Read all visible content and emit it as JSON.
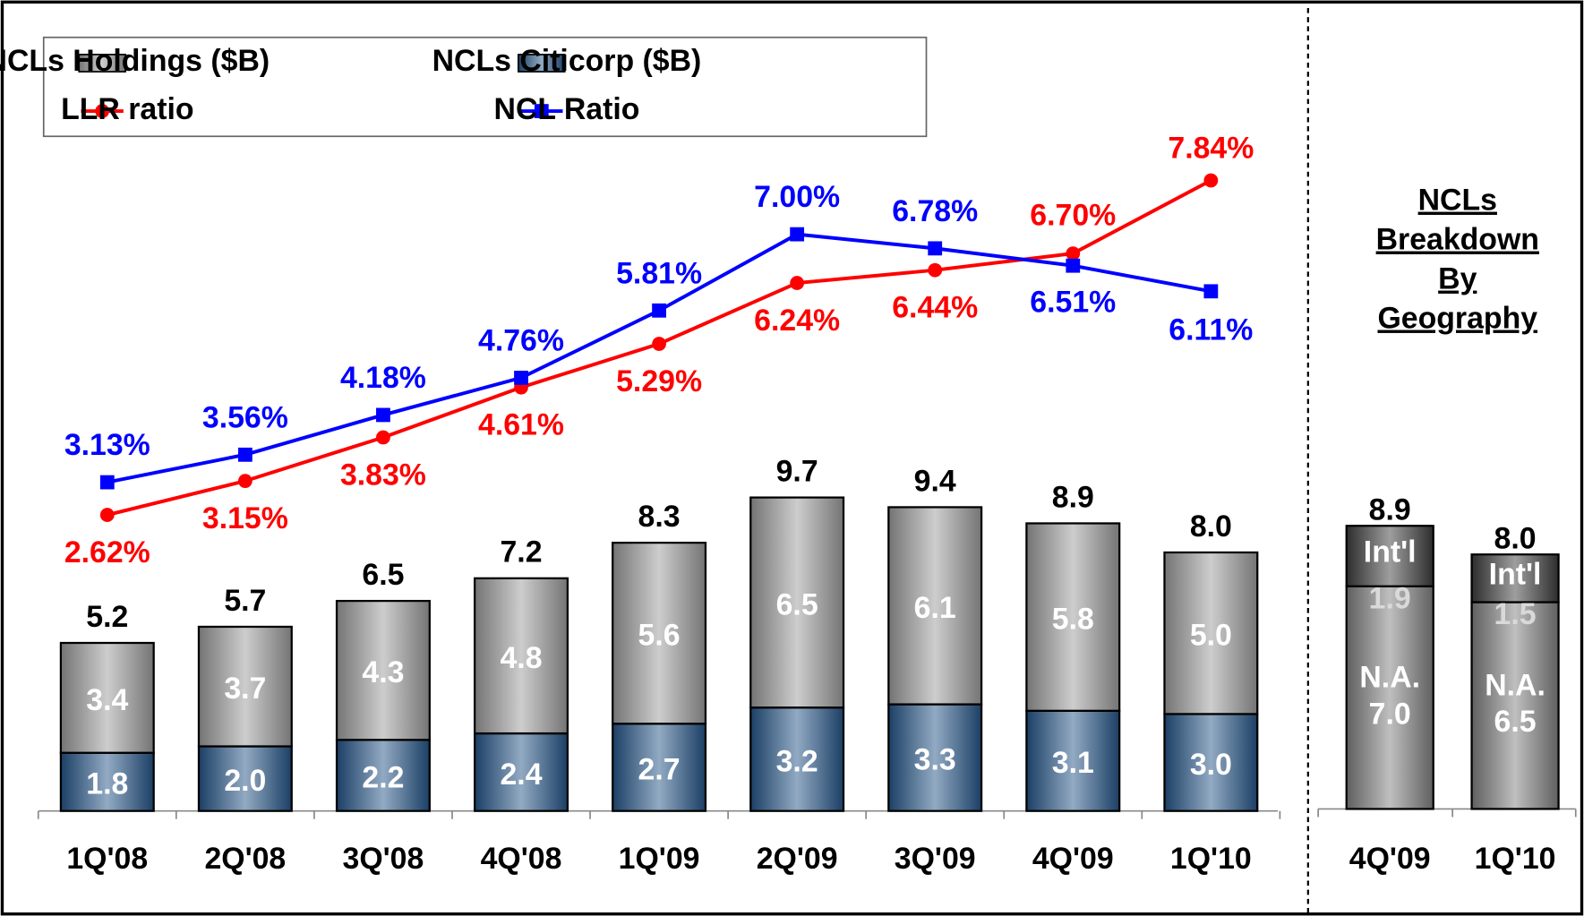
{
  "chart_data": [
    {
      "type": "bar",
      "stacked": true,
      "categories": [
        "1Q'08",
        "2Q'08",
        "3Q'08",
        "4Q'08",
        "1Q'09",
        "2Q'09",
        "3Q'09",
        "4Q'09",
        "1Q'10"
      ],
      "series": [
        {
          "name": "NCLs Holdings ($B)",
          "color": "#9a9a9a",
          "values": [
            3.4,
            3.7,
            4.3,
            4.8,
            5.6,
            6.5,
            6.1,
            5.8,
            5.0
          ],
          "value_labels": [
            "3.4",
            "3.7",
            "4.3",
            "4.8",
            "5.6",
            "6.5",
            "6.1",
            "5.8",
            "5.0"
          ]
        },
        {
          "name": "NCLs Citicorp ($B)",
          "color": "#245487",
          "values": [
            1.8,
            2.0,
            2.2,
            2.4,
            2.7,
            3.2,
            3.3,
            3.1,
            3.0
          ],
          "value_labels": [
            "1.8",
            "2.0",
            "2.2",
            "2.4",
            "2.7",
            "3.2",
            "3.3",
            "3.1",
            "3.0"
          ]
        },
        {
          "name": "LLR ratio",
          "type": "line",
          "axis": "y2",
          "color": "#ff0000",
          "values": [
            2.62,
            3.15,
            3.83,
            4.61,
            5.29,
            6.24,
            6.44,
            6.7,
            7.84
          ],
          "value_labels": [
            "2.62%",
            "3.15%",
            "3.83%",
            "4.61%",
            "5.29%",
            "6.24%",
            "6.44%",
            "6.70%",
            "7.84%"
          ]
        },
        {
          "name": "NCL Ratio",
          "type": "line",
          "axis": "y2",
          "color": "#0000ff",
          "values": [
            3.13,
            3.56,
            4.18,
            4.76,
            5.81,
            7.0,
            6.78,
            6.51,
            6.11
          ],
          "value_labels": [
            "3.13%",
            "3.56%",
            "4.18%",
            "4.76%",
            "5.81%",
            "7.00%",
            "6.78%",
            "6.51%",
            "6.11%"
          ]
        }
      ],
      "totals": [
        5.2,
        5.7,
        6.5,
        7.2,
        8.3,
        9.7,
        9.4,
        8.9,
        8.0
      ],
      "total_labels": [
        "5.2",
        "5.7",
        "6.5",
        "7.2",
        "8.3",
        "9.7",
        "9.4",
        "8.9",
        "8.0"
      ],
      "ylim": [
        0,
        23
      ],
      "y2lim": [
        -2,
        9.6
      ]
    },
    {
      "type": "bar",
      "stacked": true,
      "title": "NCLs Breakdown By Geography",
      "categories": [
        "4Q'09",
        "1Q'10"
      ],
      "series": [
        {
          "name": "Int'l",
          "color": "#3c3c3c",
          "values": [
            1.9,
            1.5
          ],
          "value_labels": [
            "1.9",
            "1.5"
          ]
        },
        {
          "name": "N.A.",
          "color": "#7f7f7f",
          "values": [
            7.0,
            6.5
          ],
          "value_labels": [
            "7.0",
            "6.5"
          ]
        }
      ],
      "totals": [
        8.9,
        8.0
      ],
      "total_labels": [
        "8.9",
        "8.0"
      ],
      "ylim": [
        0,
        23
      ]
    }
  ]
}
